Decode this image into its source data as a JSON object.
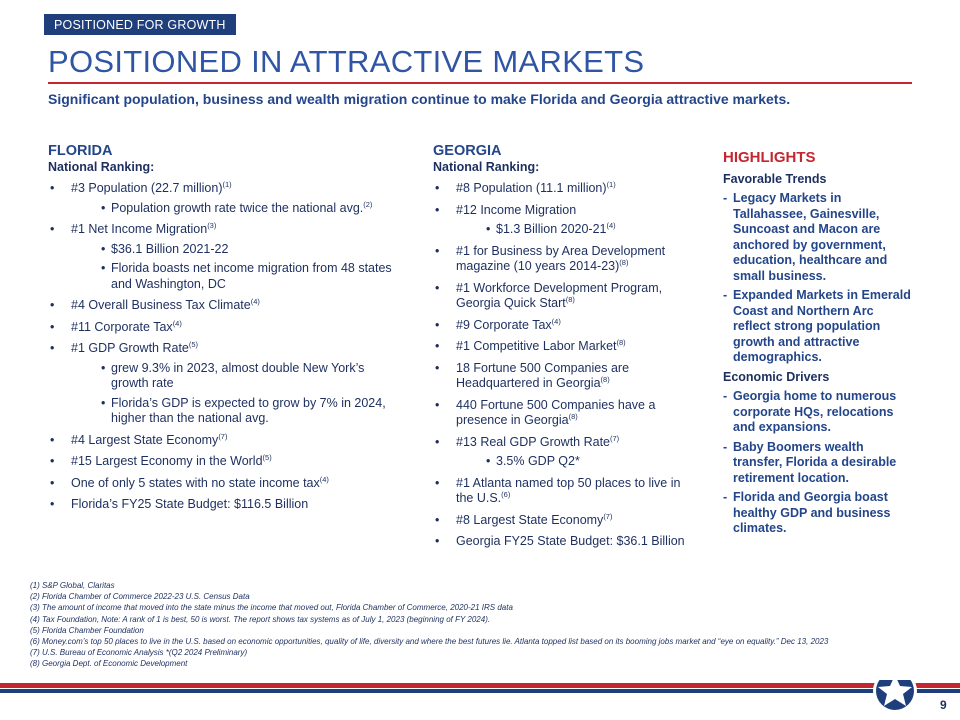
{
  "header": {
    "tag": "POSITIONED FOR GROWTH",
    "title": "POSITIONED IN ATTRACTIVE MARKETS",
    "subtitle": "Significant population, business and wealth migration continue to make Florida and Georgia attractive markets."
  },
  "florida": {
    "state": "FLORIDA",
    "heading": "National Ranking:",
    "items": [
      {
        "text": "#3 Population (22.7 million)",
        "note": "(1)",
        "subs": [
          {
            "text": "Population growth rate twice the national avg.",
            "note": "(2)"
          }
        ]
      },
      {
        "text": "#1 Net Income Migration",
        "note": "(3)",
        "subs": [
          {
            "text": "$36.1 Billion 2021-22"
          },
          {
            "text": "Florida boasts net income migration from 48 states and Washington, DC"
          }
        ]
      },
      {
        "text": "#4 Overall Business Tax Climate",
        "note": "(4)"
      },
      {
        "text": "#11 Corporate Tax",
        "note": "(4)"
      },
      {
        "text": "#1 GDP Growth Rate",
        "note": "(5)",
        "subs": [
          {
            "text": "grew 9.3% in 2023, almost double New York’s growth rate"
          },
          {
            "text": "Florida’s GDP is expected to grow by 7% in 2024, higher than the national avg."
          }
        ]
      },
      {
        "text": "#4 Largest State Economy",
        "note": "(7)"
      },
      {
        "text": "#15 Largest Economy in the World",
        "note": "(5)"
      },
      {
        "text": "One of only 5 states with no state income tax",
        "note": "(4)"
      },
      {
        "text": "Florida’s FY25 State Budget: $116.5 Billion"
      }
    ]
  },
  "georgia": {
    "state": "GEORGIA",
    "heading": "National Ranking:",
    "items": [
      {
        "text": "#8 Population (11.1 million)",
        "note": "(1)"
      },
      {
        "text": "#12 Income Migration",
        "subs": [
          {
            "text": "$1.3 Billion 2020-21",
            "note": "(4)"
          }
        ]
      },
      {
        "text": "#1 for Business by Area Development magazine (10 years 2014-23)",
        "note": "(8)"
      },
      {
        "text": "#1 Workforce Development Program, Georgia Quick Start",
        "note": "(8)"
      },
      {
        "text": "#9 Corporate Tax",
        "note": "(4)"
      },
      {
        "text": "#1 Competitive Labor Market",
        "note": "(8)"
      },
      {
        "text": "18 Fortune 500 Companies are Headquartered in Georgia",
        "note": "(8)"
      },
      {
        "text": "440 Fortune 500 Companies have a presence in Georgia",
        "note": "(8)"
      },
      {
        "text": "#13 Real GDP  Growth Rate",
        "note": "(7)",
        "subs": [
          {
            "text": "3.5% GDP Q2*"
          }
        ]
      },
      {
        "text": "#1 Atlanta named top 50 places to live in the U.S.",
        "note": "(6)"
      },
      {
        "text": "#8 Largest State Economy",
        "note": "(7)"
      },
      {
        "text": "Georgia FY25 State Budget: $36.1 Billion"
      }
    ]
  },
  "highlights": {
    "title": "HIGHLIGHTS",
    "sections": [
      {
        "heading": "Favorable Trends",
        "items": [
          "Legacy Markets in Tallahassee, Gainesville, Suncoast and Macon are anchored by government, education, healthcare and small business.",
          "Expanded Markets in Emerald Coast and Northern Arc reflect strong population growth and attractive demographics."
        ]
      },
      {
        "heading": "Economic Drivers",
        "items": [
          "Georgia home to numerous corporate HQs, relocations and expansions.",
          "Baby Boomers wealth transfer, Florida a desirable retirement location.",
          "Florida and Georgia boast healthy GDP and business climates."
        ]
      }
    ]
  },
  "footnotes": [
    "(1) S&P Global, Claritas",
    "(2) Florida Chamber of Commerce 2022-23 U.S. Census Data",
    "(3) The amount of income that moved into the state minus the income that moved out, Florida Chamber of Commerce, 2020-21 IRS data",
    "(4) Tax Foundation, Note: A rank of 1 is best, 50 is worst. The report shows tax systems as of July 1, 2023 (beginning of FY 2024).",
    "(5) Florida Chamber Foundation",
    "(6) Money.com’s top 50 places to live in the U.S. based on economic opportunities, quality of life, diversity and where the best futures lie. Atlanta topped list based on its booming jobs market and “eye on equality.” Dec 13, 2023",
    "(7) U.S. Bureau of Economic Analysis *(Q2 2024 Preliminary)",
    "(8) Georgia Dept. of Economic Development"
  ],
  "page_number": "9"
}
